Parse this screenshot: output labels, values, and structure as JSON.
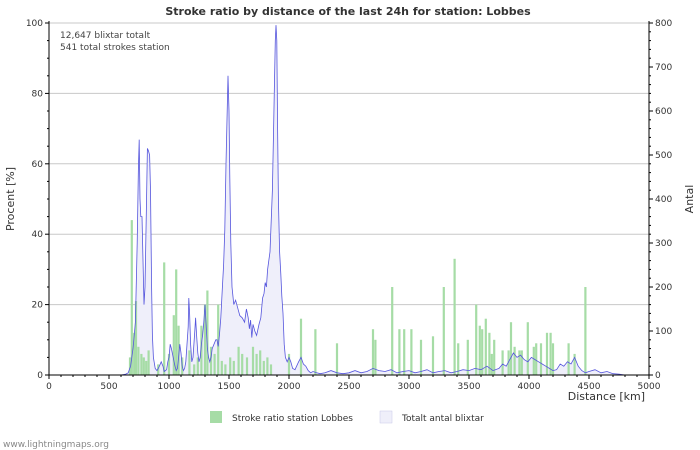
{
  "chart_data": {
    "type": "bar+area",
    "title": "Stroke ratio by distance of the last 24h for station: Lobbes",
    "xlabel": "Distance   [km]",
    "ylabel_left": "Procent   [%]",
    "ylabel_right": "Antal",
    "xlim": [
      0,
      5000
    ],
    "ylim_left": [
      0,
      100
    ],
    "ylim_right": [
      0,
      800
    ],
    "x_ticks": [
      0,
      500,
      1000,
      1500,
      2000,
      2500,
      3000,
      3500,
      4000,
      4500,
      5000
    ],
    "y_left_ticks": [
      0,
      20,
      40,
      60,
      80,
      100
    ],
    "y_right_ticks": [
      0,
      100,
      200,
      300,
      400,
      500,
      600,
      700,
      800
    ],
    "annotations": [
      "12,647 blixtar totalt",
      "541 total strokes station"
    ],
    "series": [
      {
        "name": "Stroke ratio station Lobbes",
        "type": "bar",
        "axis": "left",
        "color": "#a6dca6",
        "points": [
          [
            675,
            5
          ],
          [
            690,
            44
          ],
          [
            710,
            12
          ],
          [
            725,
            21
          ],
          [
            745,
            8
          ],
          [
            770,
            6
          ],
          [
            790,
            5
          ],
          [
            810,
            4
          ],
          [
            830,
            7
          ],
          [
            910,
            3
          ],
          [
            960,
            32
          ],
          [
            1000,
            6
          ],
          [
            1040,
            17
          ],
          [
            1060,
            30
          ],
          [
            1080,
            14
          ],
          [
            1110,
            5
          ],
          [
            1170,
            7
          ],
          [
            1210,
            3
          ],
          [
            1240,
            5
          ],
          [
            1270,
            14
          ],
          [
            1300,
            20
          ],
          [
            1320,
            24
          ],
          [
            1350,
            8
          ],
          [
            1380,
            6
          ],
          [
            1410,
            20
          ],
          [
            1440,
            4
          ],
          [
            1470,
            3
          ],
          [
            1510,
            5
          ],
          [
            1540,
            4
          ],
          [
            1580,
            8
          ],
          [
            1610,
            6
          ],
          [
            1650,
            5
          ],
          [
            1700,
            8
          ],
          [
            1730,
            6
          ],
          [
            1760,
            7
          ],
          [
            1790,
            4
          ],
          [
            1820,
            5
          ],
          [
            1850,
            3
          ],
          [
            2000,
            6
          ],
          [
            2100,
            16
          ],
          [
            2220,
            13
          ],
          [
            2400,
            9
          ],
          [
            2700,
            13
          ],
          [
            2720,
            10
          ],
          [
            2860,
            25
          ],
          [
            2920,
            13
          ],
          [
            2960,
            13
          ],
          [
            3020,
            13
          ],
          [
            3100,
            10
          ],
          [
            3200,
            11
          ],
          [
            3290,
            25
          ],
          [
            3380,
            33
          ],
          [
            3410,
            9
          ],
          [
            3490,
            10
          ],
          [
            3560,
            20
          ],
          [
            3590,
            14
          ],
          [
            3610,
            13
          ],
          [
            3640,
            16
          ],
          [
            3670,
            12
          ],
          [
            3690,
            6
          ],
          [
            3710,
            10
          ],
          [
            3780,
            7
          ],
          [
            3830,
            7
          ],
          [
            3850,
            15
          ],
          [
            3880,
            8
          ],
          [
            3920,
            7
          ],
          [
            3940,
            7
          ],
          [
            3990,
            15
          ],
          [
            4040,
            8
          ],
          [
            4060,
            9
          ],
          [
            4100,
            9
          ],
          [
            4150,
            12
          ],
          [
            4180,
            12
          ],
          [
            4200,
            9
          ],
          [
            4330,
            9
          ],
          [
            4380,
            6
          ],
          [
            4470,
            25
          ]
        ]
      },
      {
        "name": "Totalt antal blixtar",
        "type": "area",
        "axis": "right",
        "color": "#5555dd",
        "fill": "#efeffa",
        "points": [
          [
            600,
            0
          ],
          [
            640,
            2
          ],
          [
            660,
            5
          ],
          [
            680,
            20
          ],
          [
            700,
            60
          ],
          [
            720,
            120
          ],
          [
            735,
            300
          ],
          [
            745,
            470
          ],
          [
            752,
            535
          ],
          [
            758,
            400
          ],
          [
            765,
            360
          ],
          [
            775,
            360
          ],
          [
            785,
            240
          ],
          [
            792,
            160
          ],
          [
            800,
            200
          ],
          [
            812,
            380
          ],
          [
            820,
            515
          ],
          [
            828,
            510
          ],
          [
            838,
            500
          ],
          [
            846,
            420
          ],
          [
            855,
            200
          ],
          [
            862,
            90
          ],
          [
            870,
            40
          ],
          [
            885,
            15
          ],
          [
            900,
            10
          ],
          [
            920,
            20
          ],
          [
            935,
            30
          ],
          [
            950,
            20
          ],
          [
            960,
            8
          ],
          [
            980,
            12
          ],
          [
            990,
            30
          ],
          [
            1000,
            40
          ],
          [
            1010,
            70
          ],
          [
            1020,
            60
          ],
          [
            1035,
            40
          ],
          [
            1050,
            20
          ],
          [
            1060,
            10
          ],
          [
            1070,
            15
          ],
          [
            1080,
            40
          ],
          [
            1090,
            70
          ],
          [
            1100,
            50
          ],
          [
            1110,
            20
          ],
          [
            1120,
            10
          ],
          [
            1130,
            15
          ],
          [
            1140,
            30
          ],
          [
            1150,
            70
          ],
          [
            1160,
            110
          ],
          [
            1165,
            175
          ],
          [
            1172,
            140
          ],
          [
            1180,
            70
          ],
          [
            1190,
            30
          ],
          [
            1200,
            40
          ],
          [
            1215,
            100
          ],
          [
            1222,
            130
          ],
          [
            1230,
            90
          ],
          [
            1240,
            50
          ],
          [
            1250,
            30
          ],
          [
            1260,
            40
          ],
          [
            1270,
            70
          ],
          [
            1280,
            90
          ],
          [
            1290,
            120
          ],
          [
            1300,
            160
          ],
          [
            1310,
            110
          ],
          [
            1320,
            60
          ],
          [
            1330,
            40
          ],
          [
            1340,
            30
          ],
          [
            1350,
            40
          ],
          [
            1360,
            60
          ],
          [
            1375,
            70
          ],
          [
            1390,
            80
          ],
          [
            1400,
            80
          ],
          [
            1410,
            65
          ],
          [
            1420,
            90
          ],
          [
            1432,
            130
          ],
          [
            1445,
            200
          ],
          [
            1455,
            250
          ],
          [
            1465,
            330
          ],
          [
            1475,
            480
          ],
          [
            1485,
            600
          ],
          [
            1492,
            680
          ],
          [
            1500,
            600
          ],
          [
            1507,
            450
          ],
          [
            1515,
            300
          ],
          [
            1525,
            200
          ],
          [
            1540,
            160
          ],
          [
            1555,
            170
          ],
          [
            1570,
            155
          ],
          [
            1590,
            135
          ],
          [
            1610,
            130
          ],
          [
            1630,
            120
          ],
          [
            1645,
            150
          ],
          [
            1660,
            130
          ],
          [
            1670,
            105
          ],
          [
            1680,
            125
          ],
          [
            1690,
            85
          ],
          [
            1700,
            115
          ],
          [
            1715,
            100
          ],
          [
            1730,
            90
          ],
          [
            1750,
            115
          ],
          [
            1765,
            130
          ],
          [
            1780,
            175
          ],
          [
            1792,
            185
          ],
          [
            1802,
            210
          ],
          [
            1812,
            200
          ],
          [
            1822,
            240
          ],
          [
            1832,
            260
          ],
          [
            1842,
            280
          ],
          [
            1852,
            350
          ],
          [
            1862,
            420
          ],
          [
            1872,
            560
          ],
          [
            1880,
            680
          ],
          [
            1886,
            760
          ],
          [
            1892,
            795
          ],
          [
            1898,
            760
          ],
          [
            1905,
            560
          ],
          [
            1912,
            400
          ],
          [
            1922,
            280
          ],
          [
            1932,
            230
          ],
          [
            1940,
            180
          ],
          [
            1950,
            140
          ],
          [
            1960,
            70
          ],
          [
            1970,
            40
          ],
          [
            1985,
            30
          ],
          [
            2000,
            40
          ],
          [
            2015,
            30
          ],
          [
            2030,
            15
          ],
          [
            2050,
            12
          ],
          [
            2080,
            30
          ],
          [
            2100,
            40
          ],
          [
            2120,
            25
          ],
          [
            2140,
            20
          ],
          [
            2160,
            10
          ],
          [
            2180,
            5
          ],
          [
            2200,
            8
          ],
          [
            2230,
            5
          ],
          [
            2260,
            3
          ],
          [
            2300,
            5
          ],
          [
            2350,
            10
          ],
          [
            2400,
            5
          ],
          [
            2450,
            3
          ],
          [
            2500,
            5
          ],
          [
            2550,
            10
          ],
          [
            2600,
            5
          ],
          [
            2650,
            8
          ],
          [
            2700,
            15
          ],
          [
            2750,
            10
          ],
          [
            2800,
            8
          ],
          [
            2850,
            12
          ],
          [
            2900,
            5
          ],
          [
            2950,
            8
          ],
          [
            3000,
            10
          ],
          [
            3050,
            5
          ],
          [
            3100,
            8
          ],
          [
            3150,
            12
          ],
          [
            3200,
            5
          ],
          [
            3250,
            8
          ],
          [
            3300,
            10
          ],
          [
            3350,
            5
          ],
          [
            3400,
            8
          ],
          [
            3450,
            12
          ],
          [
            3500,
            10
          ],
          [
            3550,
            15
          ],
          [
            3600,
            12
          ],
          [
            3650,
            20
          ],
          [
            3700,
            10
          ],
          [
            3750,
            15
          ],
          [
            3780,
            25
          ],
          [
            3810,
            20
          ],
          [
            3840,
            35
          ],
          [
            3870,
            50
          ],
          [
            3900,
            40
          ],
          [
            3930,
            45
          ],
          [
            3960,
            35
          ],
          [
            3990,
            30
          ],
          [
            4020,
            40
          ],
          [
            4050,
            35
          ],
          [
            4080,
            30
          ],
          [
            4110,
            25
          ],
          [
            4140,
            20
          ],
          [
            4170,
            15
          ],
          [
            4200,
            10
          ],
          [
            4230,
            12
          ],
          [
            4260,
            25
          ],
          [
            4290,
            20
          ],
          [
            4320,
            30
          ],
          [
            4350,
            25
          ],
          [
            4380,
            40
          ],
          [
            4410,
            20
          ],
          [
            4440,
            10
          ],
          [
            4470,
            5
          ],
          [
            4500,
            8
          ],
          [
            4550,
            12
          ],
          [
            4600,
            5
          ],
          [
            4650,
            8
          ],
          [
            4700,
            3
          ],
          [
            4750,
            2
          ],
          [
            4800,
            0
          ]
        ]
      }
    ]
  },
  "footer": {
    "credit": "www.lightningmaps.org"
  },
  "colors": {
    "bar": "#a6dca6",
    "line": "#5555dd",
    "area": "#efeffa",
    "grid": "#c8c8c8",
    "axis": "#000000",
    "text": "#333333"
  }
}
